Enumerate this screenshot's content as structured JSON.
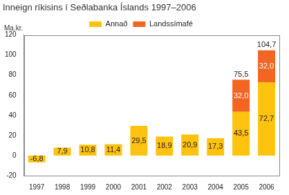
{
  "chart_data": {
    "type": "bar",
    "title": "Inneign ríkisins í Seðlabanka Íslands 1997–2006",
    "y_label": "Ma.kr.",
    "categories": [
      "1997",
      "1998",
      "1999",
      "2000",
      "2001",
      "2002",
      "2003",
      "2004",
      "2005",
      "2006"
    ],
    "series": [
      {
        "name": "Annað",
        "color": "#ffc20e",
        "values": [
          -6.8,
          7.9,
          10.8,
          11.4,
          29.5,
          18.9,
          20.9,
          17.3,
          43.5,
          72.7
        ],
        "value_labels": [
          "-6,8",
          "7,9",
          "10,8",
          "11,4",
          "29,5",
          "18,9",
          "20,9",
          "17,3",
          "43,5",
          "72,7"
        ]
      },
      {
        "name": "Landssímafé",
        "color": "#f26522",
        "values": [
          null,
          null,
          null,
          null,
          null,
          null,
          null,
          null,
          32.0,
          32.0
        ],
        "value_labels": [
          null,
          null,
          null,
          null,
          null,
          null,
          null,
          null,
          "32,0",
          "32,0"
        ]
      }
    ],
    "annotations": [
      {
        "category": "2005",
        "value": 75.5,
        "label": "75,5"
      },
      {
        "category": "2006",
        "value": 104.7,
        "label": "104,7"
      }
    ],
    "ylim": [
      -20,
      120
    ],
    "yticks": [
      -20,
      0,
      20,
      40,
      60,
      80,
      100,
      120
    ],
    "stacked": true,
    "data_labels": true,
    "grid": false,
    "legend": "top"
  }
}
